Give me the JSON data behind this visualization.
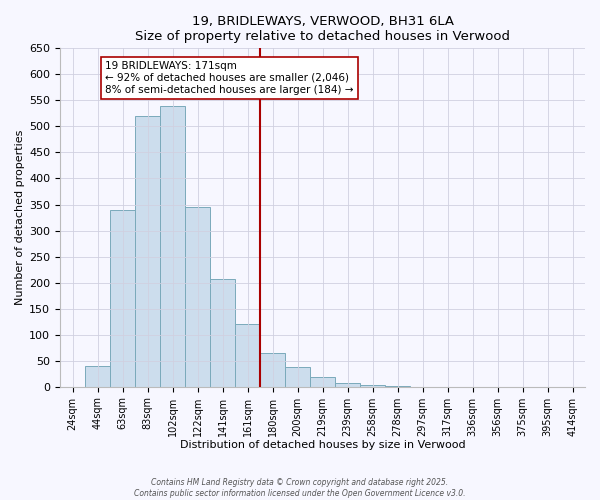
{
  "title": "19, BRIDLEWAYS, VERWOOD, BH31 6LA",
  "subtitle": "Size of property relative to detached houses in Verwood",
  "xlabel": "Distribution of detached houses by size in Verwood",
  "ylabel": "Number of detached properties",
  "bar_labels": [
    "24sqm",
    "44sqm",
    "63sqm",
    "83sqm",
    "102sqm",
    "122sqm",
    "141sqm",
    "161sqm",
    "180sqm",
    "200sqm",
    "219sqm",
    "239sqm",
    "258sqm",
    "278sqm",
    "297sqm",
    "317sqm",
    "336sqm",
    "356sqm",
    "375sqm",
    "395sqm",
    "414sqm"
  ],
  "bar_values": [
    0,
    40,
    340,
    520,
    540,
    345,
    207,
    120,
    65,
    38,
    18,
    8,
    3,
    1,
    0,
    0,
    0,
    0,
    0,
    0,
    0
  ],
  "bar_color": "#ccdded",
  "bar_edgecolor": "#7aaabb",
  "vline_color": "#aa0000",
  "annotation_title": "19 BRIDLEWAYS: 171sqm",
  "annotation_line1": "← 92% of detached houses are smaller (2,046)",
  "annotation_line2": "8% of semi-detached houses are larger (184) →",
  "ylim": [
    0,
    650
  ],
  "yticks": [
    0,
    50,
    100,
    150,
    200,
    250,
    300,
    350,
    400,
    450,
    500,
    550,
    600,
    650
  ],
  "footer1": "Contains HM Land Registry data © Crown copyright and database right 2025.",
  "footer2": "Contains public sector information licensed under the Open Government Licence v3.0.",
  "bg_color": "#f7f7ff",
  "grid_color": "#d0d0e0"
}
